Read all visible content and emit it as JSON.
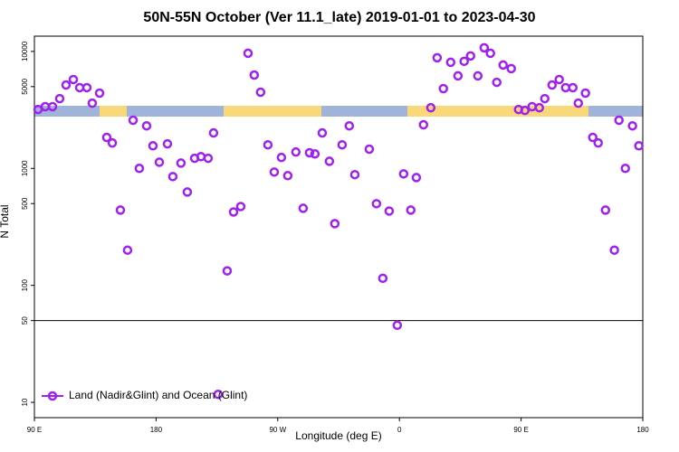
{
  "chart_data": {
    "type": "scatter",
    "title": "50N-55N October (Ver 11.1_late)   2019-01-01 to 2023-04-30",
    "x_label": "Longitude (deg E)",
    "y_label": "N Total",
    "log_y": true,
    "xlim": [
      90,
      540
    ],
    "ylim": [
      7.4,
      13500
    ],
    "xticks": [
      {
        "value": 90,
        "label": "90 E"
      },
      180,
      {
        "value": 270,
        "label": "90 W"
      },
      {
        "value": 360,
        "label": "0"
      },
      {
        "value": 450,
        "label": "90 E"
      },
      {
        "value": 540,
        "label": "180"
      }
    ],
    "yticks": [
      10,
      50,
      100,
      500,
      1000,
      5000,
      10000
    ],
    "hline": 50,
    "legend": "bottom-left",
    "series": [
      {
        "name": "Land (Nadir&Glint) and Ocean (Glint)",
        "color": "#a020f0",
        "x": [
          92.7,
          98,
          103.4,
          108.7,
          113.4,
          118.8,
          123.5,
          128.8,
          132.8,
          138.2,
          143.5,
          147.6,
          153.6,
          158.9,
          163,
          167.6,
          173,
          177.7,
          182.4,
          188.4,
          192.4,
          198.4,
          203.1,
          208.5,
          213.2,
          218.5,
          222.5,
          225.9,
          232.6,
          237.3,
          242.6,
          248,
          252.6,
          257.3,
          262.7,
          267.4,
          272.7,
          277.4,
          283.4,
          288.8,
          293.5,
          297.5,
          302.9,
          308.2,
          312.2,
          317.6,
          322.9,
          327,
          337.7,
          343,
          347.7,
          352.4,
          358.4,
          363.1,
          368.4,
          372.5,
          377.8,
          383.2,
          387.9,
          392.5,
          397.9,
          403.3,
          407.9,
          412.6,
          418,
          422.7,
          427.3,
          432,
          436.7,
          442.7,
          448.1,
          452.8,
          458.1,
          463.5,
          467.5,
          472.9,
          478.2,
          482.9,
          488.3,
          492.3,
          497.6,
          503,
          507,
          512.4,
          519,
          522.4,
          527.1,
          532.4,
          537.1
        ],
        "values": [
          3190,
          3370,
          3370,
          3950,
          5160,
          5750,
          4900,
          4900,
          3610,
          4400,
          1840,
          1650,
          440,
          200,
          2580,
          1000,
          2310,
          1560,
          1130,
          1620,
          851,
          1110,
          628,
          1220,
          1260,
          1220,
          2010,
          11.7,
          133,
          424,
          472,
          9640,
          6280,
          4480,
          1590,
          930,
          1240,
          867,
          1380,
          456,
          1360,
          1330,
          2010,
          1150,
          337,
          1590,
          2310,
          884,
          1460,
          499,
          115,
          432,
          45.6,
          898,
          440,
          835,
          2360,
          3300,
          8830,
          4810,
          8070,
          6180,
          8230,
          9150,
          6180,
          10740,
          9640,
          5440,
          7650,
          7130,
          3190,
          3130,
          3370,
          3300,
          3950,
          5160,
          5750,
          4900,
          4900,
          3610,
          4400,
          1840,
          1650,
          440,
          200,
          2580,
          1000,
          2310,
          1560
        ]
      }
    ]
  }
}
